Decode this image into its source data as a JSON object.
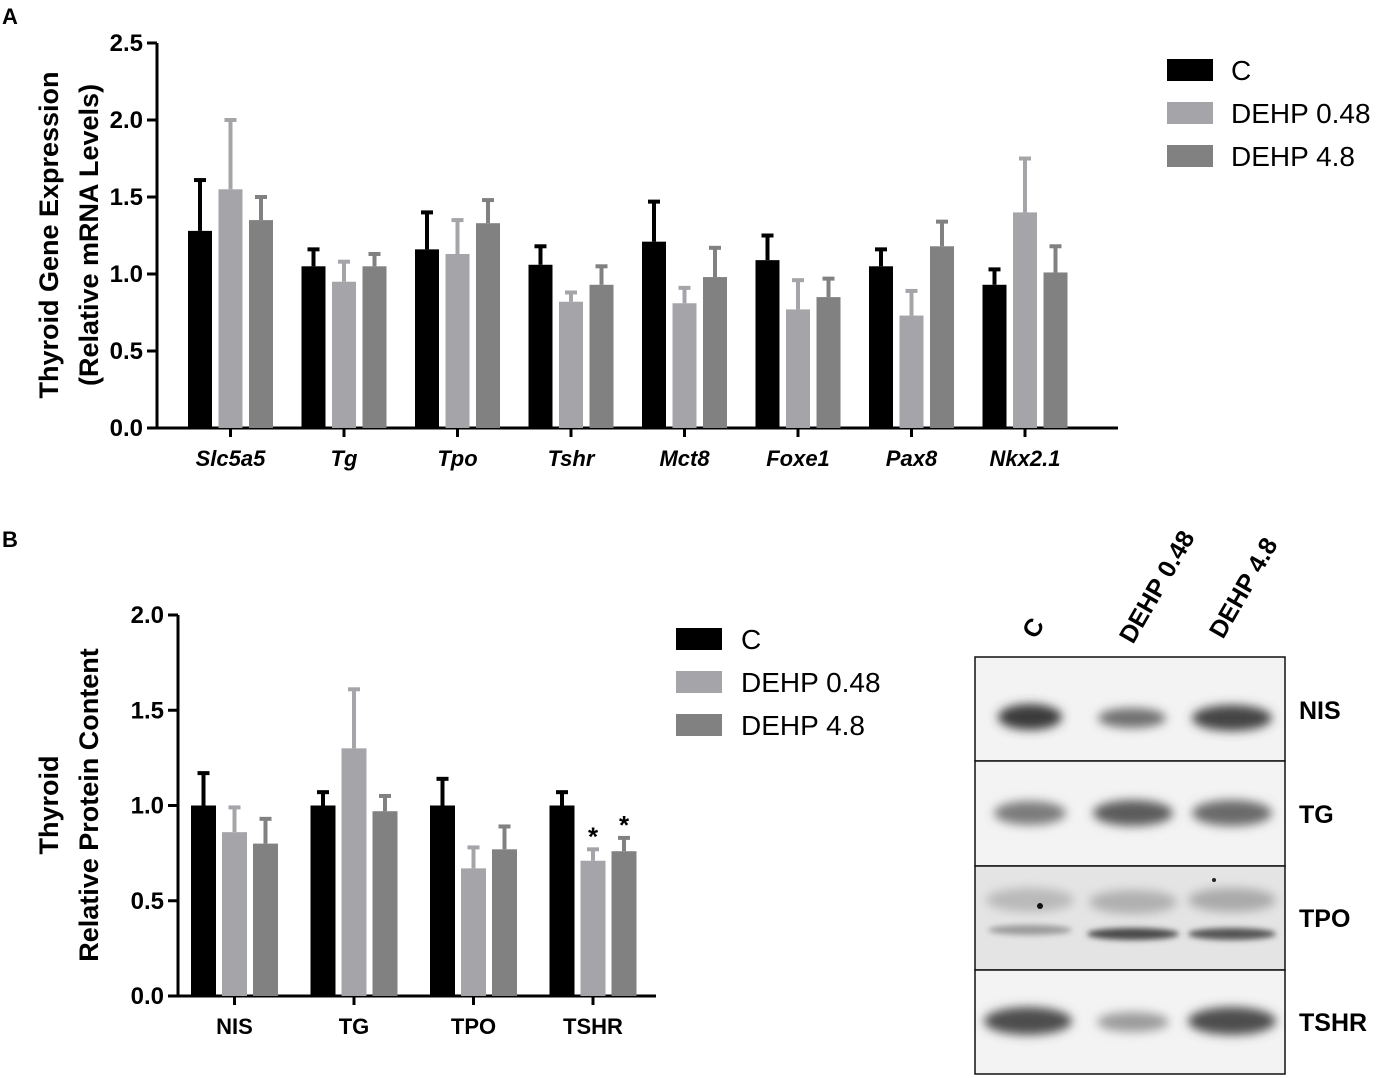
{
  "panel_letters": [
    "A",
    "B"
  ],
  "colors": {
    "C": "#000000",
    "DEHP 0.48": "#a5a5a9",
    "DEHP 4.8": "#818181"
  },
  "chart_data": [
    {
      "id": "A",
      "type": "bar",
      "title": "",
      "xlabel": "",
      "ylabel_lines": [
        "Thyroid Gene Expression",
        "(Relative mRNA Levels)"
      ],
      "ylim": [
        0,
        2.5
      ],
      "yticks": [
        "0.0",
        "0.5",
        "1.0",
        "1.5",
        "2.0",
        "2.5"
      ],
      "categories": [
        "Slc5a5",
        "Tg",
        "Tpo",
        "Tshr",
        "Mct8",
        "Foxe1",
        "Pax8",
        "Nkx2.1"
      ],
      "categories_italic": true,
      "legend_position": "top-right",
      "series": [
        {
          "name": "C",
          "color": "#000000",
          "values": [
            1.28,
            1.05,
            1.16,
            1.06,
            1.21,
            1.09,
            1.05,
            0.93
          ],
          "errors": [
            0.33,
            0.11,
            0.24,
            0.12,
            0.26,
            0.16,
            0.11,
            0.1
          ]
        },
        {
          "name": "DEHP 0.48",
          "color": "#a5a5a9",
          "values": [
            1.55,
            0.95,
            1.13,
            0.82,
            0.81,
            0.77,
            0.73,
            1.4
          ],
          "errors": [
            0.45,
            0.13,
            0.22,
            0.06,
            0.1,
            0.19,
            0.16,
            0.35
          ]
        },
        {
          "name": "DEHP 4.8",
          "color": "#818181",
          "values": [
            1.35,
            1.05,
            1.33,
            0.93,
            0.98,
            0.85,
            1.18,
            1.01
          ],
          "errors": [
            0.15,
            0.08,
            0.15,
            0.12,
            0.19,
            0.12,
            0.16,
            0.17
          ]
        }
      ],
      "significance": []
    },
    {
      "id": "B",
      "type": "bar",
      "title": "",
      "xlabel": "",
      "ylabel_lines": [
        "Thyroid",
        "Relative Protein Content"
      ],
      "ylim": [
        0,
        2.0
      ],
      "yticks": [
        "0.0",
        "0.5",
        "1.0",
        "1.5",
        "2.0"
      ],
      "categories": [
        "NIS",
        "TG",
        "TPO",
        "TSHR"
      ],
      "categories_italic": false,
      "legend_position": "top-right",
      "series": [
        {
          "name": "C",
          "color": "#000000",
          "values": [
            1.0,
            1.0,
            1.0,
            1.0
          ],
          "errors": [
            0.17,
            0.07,
            0.14,
            0.07
          ]
        },
        {
          "name": "DEHP 0.48",
          "color": "#a5a5a9",
          "values": [
            0.86,
            1.3,
            0.67,
            0.71
          ],
          "errors": [
            0.13,
            0.31,
            0.11,
            0.06
          ]
        },
        {
          "name": "DEHP 4.8",
          "color": "#818181",
          "values": [
            0.8,
            0.97,
            0.77,
            0.76
          ],
          "errors": [
            0.13,
            0.08,
            0.12,
            0.07
          ]
        }
      ],
      "significance": [
        {
          "category": "TSHR",
          "series": "DEHP 0.48",
          "label": "*"
        },
        {
          "category": "TSHR",
          "series": "DEHP 4.8",
          "label": "*"
        }
      ]
    }
  ],
  "blot": {
    "lane_labels": [
      "C",
      "DEHP 0.48",
      "DEHP 4.8"
    ],
    "row_labels": [
      "NIS",
      "TG",
      "TPO",
      "TSHR"
    ]
  }
}
